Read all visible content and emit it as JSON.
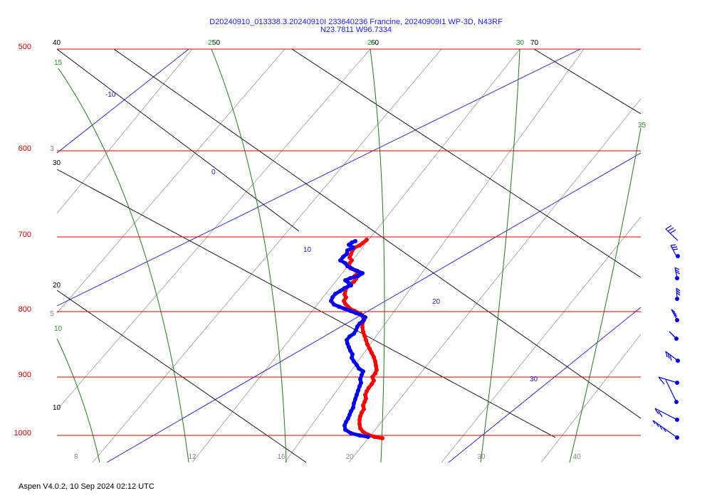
{
  "chart_data": {
    "type": "line",
    "title": "D20240910_013338.3.20240910I 233640236 Francine, 20240909I1 WP-3D, N43RF",
    "subtitle": "N23.7811 W96.7334",
    "footer": "Aspen V4.0.2, 10 Sep 2024  02:12 UTC",
    "pressure_ticks": [
      500,
      600,
      700,
      800,
      900,
      1000
    ],
    "temperature_ticks": [
      "8",
      "12",
      "16",
      "20",
      "30",
      "40"
    ],
    "colors": {
      "isobar": "#dd0000",
      "isotherm": "#888888",
      "dry_adiabat": "#000000",
      "moist_adiabat": "#1f7a1f",
      "mixing_ratio": "#1a1acc",
      "temperature": "#ff0000",
      "dewpoint": "#0000ff",
      "wind": "#0000ee"
    },
    "icons": {
      "wind_barb": "wind-barb-icon"
    },
    "series": [
      {
        "key": "temperature",
        "points": [
          [
            515,
            337
          ],
          [
            509,
            342
          ],
          [
            505,
            345
          ],
          [
            498,
            348
          ],
          [
            495,
            352
          ],
          [
            493,
            357
          ],
          [
            491,
            362
          ],
          [
            494,
            366
          ],
          [
            491,
            370
          ],
          [
            488,
            374
          ],
          [
            492,
            377
          ],
          [
            499,
            380
          ],
          [
            503,
            384
          ],
          [
            498,
            388
          ],
          [
            500,
            392
          ],
          [
            497,
            396
          ],
          [
            491,
            400
          ],
          [
            487,
            404
          ],
          [
            485,
            409
          ],
          [
            484,
            414
          ],
          [
            486,
            418
          ],
          [
            483,
            423
          ],
          [
            485,
            427
          ],
          [
            489,
            431
          ],
          [
            493,
            435
          ],
          [
            498,
            437
          ],
          [
            506,
            441
          ],
          [
            510,
            446
          ],
          [
            511,
            450
          ],
          [
            509,
            455
          ],
          [
            509,
            460
          ],
          [
            510,
            466
          ],
          [
            512,
            472
          ],
          [
            514,
            478
          ],
          [
            516,
            484
          ],
          [
            519,
            490
          ],
          [
            522,
            496
          ],
          [
            525,
            502
          ],
          [
            527,
            508
          ],
          [
            528,
            514
          ],
          [
            529,
            520
          ],
          [
            527,
            525
          ],
          [
            523,
            530
          ],
          [
            525,
            535
          ],
          [
            522,
            540
          ],
          [
            518,
            545
          ],
          [
            515,
            550
          ],
          [
            513,
            555
          ],
          [
            514,
            560
          ],
          [
            512,
            565
          ],
          [
            510,
            570
          ],
          [
            511,
            575
          ],
          [
            508,
            580
          ],
          [
            506,
            585
          ],
          [
            505,
            590
          ],
          [
            505,
            596
          ],
          [
            506,
            602
          ],
          [
            510,
            607
          ],
          [
            517,
            611
          ],
          [
            526,
            614
          ],
          [
            537,
            616
          ]
        ]
      },
      {
        "key": "dewpoint",
        "points": [
          [
            499,
            339
          ],
          [
            494,
            341
          ],
          [
            490,
            344
          ],
          [
            496,
            348
          ],
          [
            488,
            352
          ],
          [
            487,
            357
          ],
          [
            482,
            361
          ],
          [
            478,
            366
          ],
          [
            485,
            370
          ],
          [
            488,
            374
          ],
          [
            492,
            376
          ],
          [
            495,
            378
          ],
          [
            502,
            381
          ],
          [
            509,
            384
          ],
          [
            503,
            388
          ],
          [
            492,
            391
          ],
          [
            485,
            394
          ],
          [
            490,
            398
          ],
          [
            493,
            401
          ],
          [
            484,
            405
          ],
          [
            478,
            409
          ],
          [
            471,
            413
          ],
          [
            467,
            418
          ],
          [
            465,
            423
          ],
          [
            469,
            428
          ],
          [
            476,
            431
          ],
          [
            484,
            434
          ],
          [
            492,
            437
          ],
          [
            500,
            440
          ],
          [
            508,
            443
          ],
          [
            513,
            446
          ],
          [
            510,
            451
          ],
          [
            505,
            455
          ],
          [
            502,
            459
          ],
          [
            500,
            464
          ],
          [
            497,
            469
          ],
          [
            491,
            473
          ],
          [
            487,
            478
          ],
          [
            488,
            483
          ],
          [
            490,
            488
          ],
          [
            492,
            493
          ],
          [
            495,
            498
          ],
          [
            494,
            503
          ],
          [
            497,
            508
          ],
          [
            501,
            513
          ],
          [
            504,
            518
          ],
          [
            510,
            522
          ],
          [
            508,
            527
          ],
          [
            506,
            533
          ],
          [
            507,
            538
          ],
          [
            505,
            543
          ],
          [
            503,
            549
          ],
          [
            501,
            555
          ],
          [
            499,
            561
          ],
          [
            497,
            567
          ],
          [
            496,
            573
          ],
          [
            493,
            578
          ],
          [
            491,
            583
          ],
          [
            489,
            588
          ],
          [
            486,
            593
          ],
          [
            484,
            598
          ],
          [
            485,
            604
          ],
          [
            493,
            609
          ],
          [
            505,
            612
          ],
          [
            517,
            614
          ]
        ]
      }
    ],
    "wind_barbs": [
      {
        "staff": [
          [
            952,
            338
          ],
          [
            935,
            322
          ]
        ],
        "barbs": [
          [
            [
              935,
              322
            ],
            [
              943,
              317
            ]
          ],
          [
            [
              938,
              325
            ],
            [
              946,
              320
            ]
          ],
          [
            [
              941,
              328
            ],
            [
              949,
              323
            ]
          ]
        ]
      },
      {
        "staff": [
          [
            950,
            360
          ],
          [
            942,
            345
          ]
        ],
        "barbs": [
          [
            [
              942,
              345
            ],
            [
              949,
              344
            ]
          ],
          [
            [
              944,
              348
            ],
            [
              951,
              347
            ]
          ],
          [
            [
              945,
              351
            ],
            [
              952,
              350
            ]
          ]
        ]
      },
      {
        "staff": [
          [
            951,
            391
          ],
          [
            948,
            376
          ]
        ],
        "barbs": [
          [
            [
              948,
              376
            ],
            [
              954,
              379
            ]
          ],
          [
            [
              948,
              379
            ],
            [
              954,
              382
            ]
          ],
          [
            [
              949,
              382
            ],
            [
              955,
              385
            ]
          ]
        ]
      },
      {
        "staff": [
          [
            951,
            420
          ],
          [
            950,
            405
          ]
        ],
        "barbs": [
          [
            [
              950,
              405
            ],
            [
              955,
              409
            ]
          ],
          [
            [
              950,
              408
            ],
            [
              955,
              412
            ]
          ],
          [
            [
              950,
              411
            ],
            [
              955,
              415
            ]
          ]
        ]
      },
      {
        "staff": [
          [
            951,
            450
          ],
          [
            943,
            435
          ]
        ],
        "barbs": [
          [
            [
              943,
              435
            ],
            [
              948,
              439
            ]
          ],
          [
            [
              944,
              438
            ],
            [
              950,
              442
            ]
          ],
          [
            [
              946,
              441
            ],
            [
              951,
              445
            ]
          ]
        ]
      },
      {
        "staff": [
          [
            950,
            476
          ],
          [
            940,
            466
          ]
        ],
        "barbs": [
          [
            [
              940,
              466
            ],
            [
              945,
              471
            ]
          ],
          [
            [
              942,
              468
            ],
            [
              947,
              473
            ]
          ],
          [
            [
              944,
              470
            ],
            [
              949,
              475
            ]
          ]
        ]
      },
      {
        "staff": [
          [
            952,
            507
          ],
          [
            935,
            494
          ]
        ],
        "barbs": [
          [
            [
              935,
              494
            ],
            [
              937,
              502
            ]
          ],
          [
            [
              938,
              496
            ],
            [
              940,
              504
            ]
          ],
          [
            [
              941,
              499
            ],
            [
              943,
              507
            ]
          ]
        ]
      },
      {
        "staff": [
          [
            951,
            538
          ],
          [
            925,
            530
          ]
        ],
        "barbs": [
          [
            [
              925,
              530
            ],
            [
              933,
              540
            ]
          ]
        ]
      },
      {
        "staff": [
          [
            950,
            565
          ],
          [
            935,
            534
          ]
        ],
        "barbs": []
      },
      {
        "staff": [
          [
            951,
            590
          ],
          [
            920,
            574
          ]
        ],
        "barbs": [
          [
            [
              920,
              574
            ],
            [
              925,
              582
            ]
          ],
          [
            [
              925,
              578
            ],
            [
              930,
              586
            ]
          ]
        ]
      },
      {
        "staff": [
          [
            951,
            615
          ],
          [
            917,
            591
          ]
        ],
        "barbs": [
          [
            [
              917,
              591
            ],
            [
              920,
              596
            ]
          ],
          [
            [
              922,
              595
            ],
            [
              925,
              600
            ]
          ],
          [
            [
              927,
              599
            ],
            [
              930,
              604
            ]
          ],
          [
            [
              932,
              602
            ],
            [
              935,
              607
            ]
          ]
        ]
      }
    ],
    "wind_dots": [
      [
        952,
        360
      ],
      [
        951,
        391
      ],
      [
        951,
        420
      ],
      [
        951,
        450
      ],
      [
        950,
        476
      ],
      [
        952,
        507
      ],
      [
        951,
        538
      ],
      [
        950,
        565
      ],
      [
        951,
        590
      ],
      [
        951,
        615
      ]
    ]
  }
}
